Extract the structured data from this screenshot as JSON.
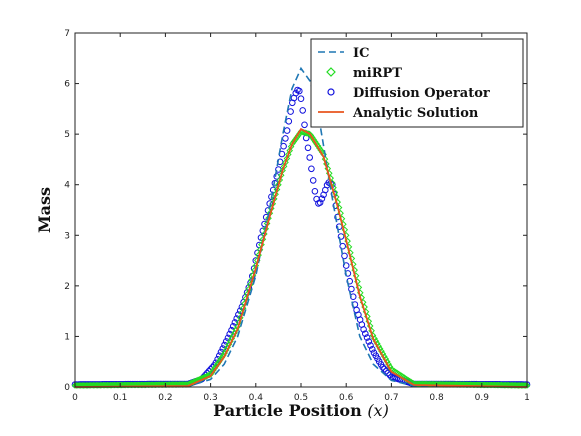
{
  "chart_data": {
    "type": "line",
    "title": "",
    "xlabel_main": "Particle Position",
    "xlabel_var": "(x)",
    "ylabel": "Mass",
    "xlim": [
      0,
      1
    ],
    "ylim": [
      0,
      7
    ],
    "xticks": [
      "0",
      "0.1",
      "0.2",
      "0.3",
      "0.4",
      "0.5",
      "0.6",
      "0.7",
      "0.8",
      "0.9",
      "1"
    ],
    "yticks": [
      "0",
      "1",
      "2",
      "3",
      "4",
      "5",
      "6",
      "7"
    ],
    "grid": false,
    "legend_position": "top-right",
    "series": [
      {
        "name": "IC",
        "style": "dashed",
        "color": "#1f77b4",
        "x": [
          0,
          0.25,
          0.3,
          0.33,
          0.36,
          0.4,
          0.43,
          0.46,
          0.48,
          0.5,
          0.52,
          0.54,
          0.57,
          0.6,
          0.63,
          0.66,
          0.7,
          0.75,
          1
        ],
        "y": [
          0,
          0.02,
          0.15,
          0.45,
          1.0,
          2.2,
          3.5,
          5.0,
          5.9,
          6.3,
          6.05,
          5.3,
          3.7,
          2.2,
          1.0,
          0.45,
          0.13,
          0.02,
          0
        ]
      },
      {
        "name": "miRPT",
        "style": "diamond",
        "color": "#22dd22",
        "x": [
          0,
          0.25,
          0.3,
          0.33,
          0.36,
          0.4,
          0.43,
          0.46,
          0.48,
          0.5,
          0.52,
          0.55,
          0.58,
          0.6,
          0.63,
          0.66,
          0.7,
          0.75,
          1
        ],
        "y": [
          0.03,
          0.05,
          0.25,
          0.65,
          1.2,
          2.4,
          3.4,
          4.3,
          4.8,
          5.05,
          5.0,
          4.6,
          3.7,
          3.0,
          1.9,
          1.0,
          0.35,
          0.06,
          0.03
        ]
      },
      {
        "name": "Diffusion Operator",
        "style": "circle",
        "color": "#1111dd",
        "x": [
          0,
          0.25,
          0.28,
          0.31,
          0.34,
          0.37,
          0.39,
          0.41,
          0.43,
          0.45,
          0.47,
          0.48,
          0.49,
          0.495,
          0.5,
          0.505,
          0.51,
          0.52,
          0.53,
          0.535,
          0.54,
          0.55,
          0.56,
          0.57,
          0.58,
          0.6,
          0.62,
          0.64,
          0.66,
          0.68,
          0.7,
          0.75,
          1
        ],
        "y": [
          0.05,
          0.06,
          0.15,
          0.45,
          1.0,
          1.6,
          2.1,
          2.9,
          3.6,
          4.3,
          5.1,
          5.6,
          5.85,
          5.9,
          5.7,
          5.4,
          5.0,
          4.5,
          3.9,
          3.7,
          3.6,
          3.8,
          4.05,
          4.0,
          3.4,
          2.4,
          1.6,
          1.1,
          0.7,
          0.4,
          0.2,
          0.06,
          0.05
        ]
      },
      {
        "name": "Analytic Solution",
        "style": "solid",
        "color": "#e8541e",
        "x": [
          0,
          0.25,
          0.3,
          0.33,
          0.36,
          0.4,
          0.43,
          0.46,
          0.48,
          0.5,
          0.52,
          0.55,
          0.58,
          0.6,
          0.63,
          0.66,
          0.7,
          0.75,
          1
        ],
        "y": [
          0,
          0.02,
          0.22,
          0.6,
          1.15,
          2.35,
          3.35,
          4.3,
          4.8,
          5.1,
          5.0,
          4.55,
          3.6,
          2.9,
          1.8,
          0.95,
          0.3,
          0.04,
          0
        ]
      }
    ]
  }
}
